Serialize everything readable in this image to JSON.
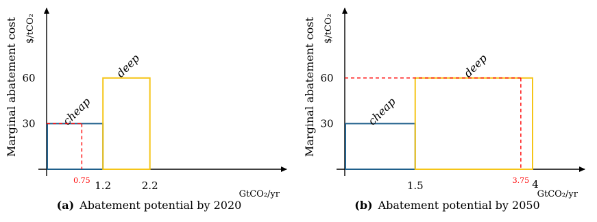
{
  "chart_data": [
    {
      "type": "bar",
      "caption_tag": "(a)",
      "caption": "Abatement potential by 2020",
      "ylabel": "Marginal abatement cost",
      "yunit": "$/tCO₂",
      "xunit": "GtCO₂/yr",
      "xlim": [
        0,
        4.7
      ],
      "ylim": [
        0,
        78
      ],
      "yticks": [
        30,
        60
      ],
      "xticks": [
        1.2,
        2.2
      ],
      "blocks": [
        {
          "name": "cheap",
          "x0": 0,
          "x1": 1.2,
          "height": 30,
          "color": "#1f5f8b"
        },
        {
          "name": "deep",
          "x0": 1.2,
          "x1": 2.2,
          "height": 60,
          "color": "#f5c518"
        }
      ],
      "marker": {
        "x": 0.75,
        "y": 30,
        "label": "0.75",
        "color": "#ff0000"
      }
    },
    {
      "type": "bar",
      "caption_tag": "(b)",
      "caption": "Abatement potential by 2050",
      "ylabel": "Marginal abatement cost",
      "yunit": "$/tCO₂",
      "xunit": "GtCO₂/yr",
      "xlim": [
        0,
        4.7
      ],
      "ylim": [
        0,
        78
      ],
      "yticks": [
        30,
        60
      ],
      "xticks": [
        1.5,
        4
      ],
      "blocks": [
        {
          "name": "cheap",
          "x0": 0,
          "x1": 1.5,
          "height": 30,
          "color": "#1f5f8b"
        },
        {
          "name": "deep",
          "x0": 1.5,
          "x1": 4,
          "height": 60,
          "color": "#f5c518"
        }
      ],
      "marker": {
        "x": 3.75,
        "y": 60,
        "label": "3.75",
        "color": "#ff0000"
      }
    }
  ]
}
